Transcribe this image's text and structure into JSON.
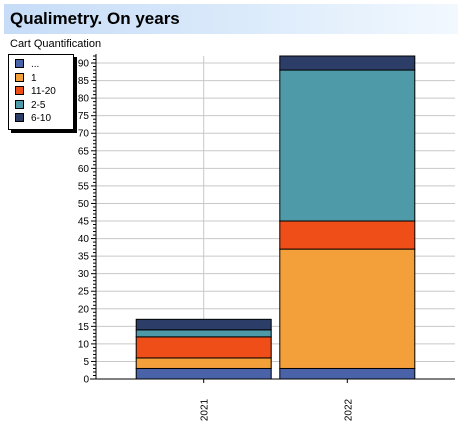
{
  "header": {
    "title": "Qualimetry. On years"
  },
  "chart_data": {
    "type": "bar",
    "stacked": true,
    "title": "Qualimetry. On years",
    "subtitle": "Cart Quantification",
    "xlabel": "",
    "ylabel": "",
    "categories": [
      "2021",
      "2022"
    ],
    "ylim": [
      0,
      92
    ],
    "yticks": [
      0,
      5,
      10,
      15,
      20,
      25,
      30,
      35,
      40,
      45,
      50,
      55,
      60,
      65,
      70,
      75,
      80,
      85,
      90
    ],
    "grid": true,
    "legend_position": "top-left",
    "series": [
      {
        "name": "...",
        "color": "#4a63a8",
        "values": [
          3,
          3
        ]
      },
      {
        "name": "1",
        "color": "#f4a03a",
        "values": [
          3,
          34
        ]
      },
      {
        "name": "11-20",
        "color": "#f04e19",
        "values": [
          6,
          8
        ]
      },
      {
        "name": "2-5",
        "color": "#4f9aa8",
        "values": [
          2,
          43
        ]
      },
      {
        "name": "6-10",
        "color": "#2c3e68",
        "values": [
          3,
          4
        ]
      }
    ]
  }
}
